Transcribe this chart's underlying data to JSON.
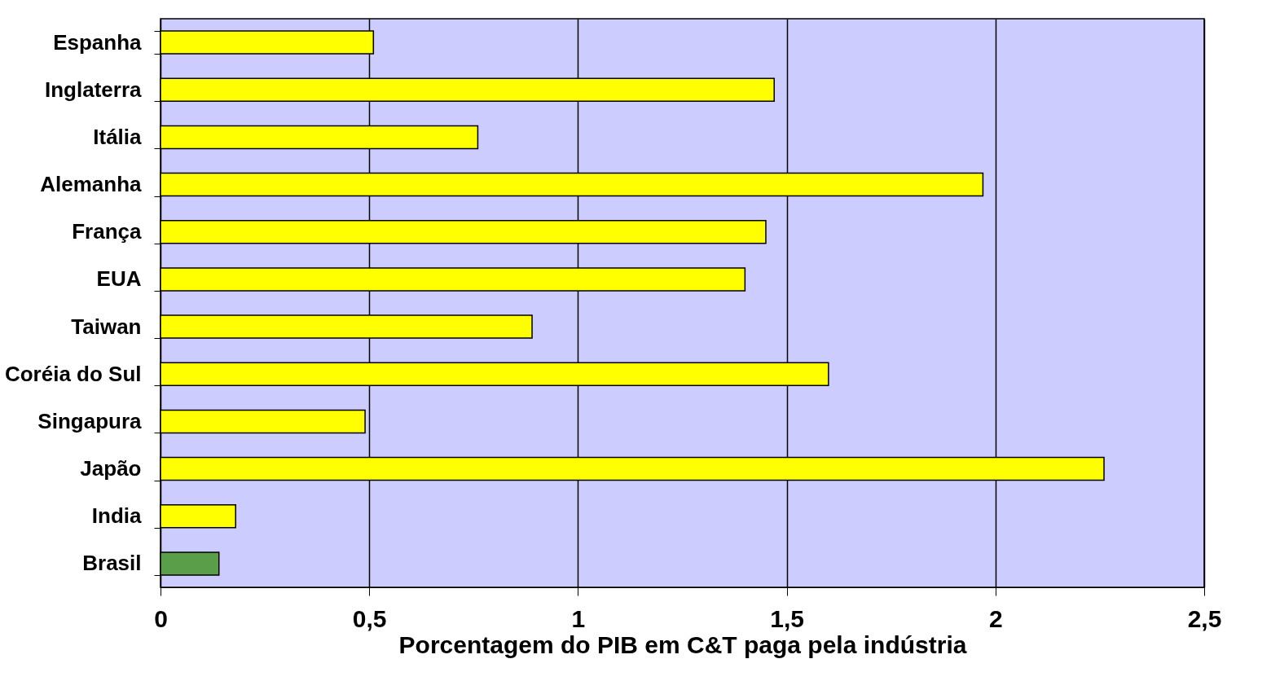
{
  "chart_data": {
    "type": "bar",
    "orientation": "horizontal",
    "xlabel": "Porcentagem do PIB em C&T paga pela indústria",
    "categories": [
      "Espanha",
      "Inglaterra",
      "Itália",
      "Alemanha",
      "França",
      "EUA",
      "Taiwan",
      "Coréia do Sul",
      "Singapura",
      "Japão",
      "India",
      "Brasil"
    ],
    "values": [
      0.51,
      1.47,
      0.76,
      1.97,
      1.45,
      1.4,
      0.89,
      1.6,
      0.49,
      2.26,
      0.18,
      0.14
    ],
    "colors": [
      "#ffff00",
      "#ffff00",
      "#ffff00",
      "#ffff00",
      "#ffff00",
      "#ffff00",
      "#ffff00",
      "#ffff00",
      "#ffff00",
      "#ffff00",
      "#ffff00",
      "#5a9e4a"
    ],
    "xlim": [
      0,
      2.5
    ],
    "xticks": [
      {
        "value": 0,
        "label": "0"
      },
      {
        "value": 0.5,
        "label": "0,5"
      },
      {
        "value": 1,
        "label": "1"
      },
      {
        "value": 1.5,
        "label": "1,5"
      },
      {
        "value": 2,
        "label": "2"
      },
      {
        "value": 2.5,
        "label": "2,5"
      }
    ],
    "grid": "x"
  }
}
